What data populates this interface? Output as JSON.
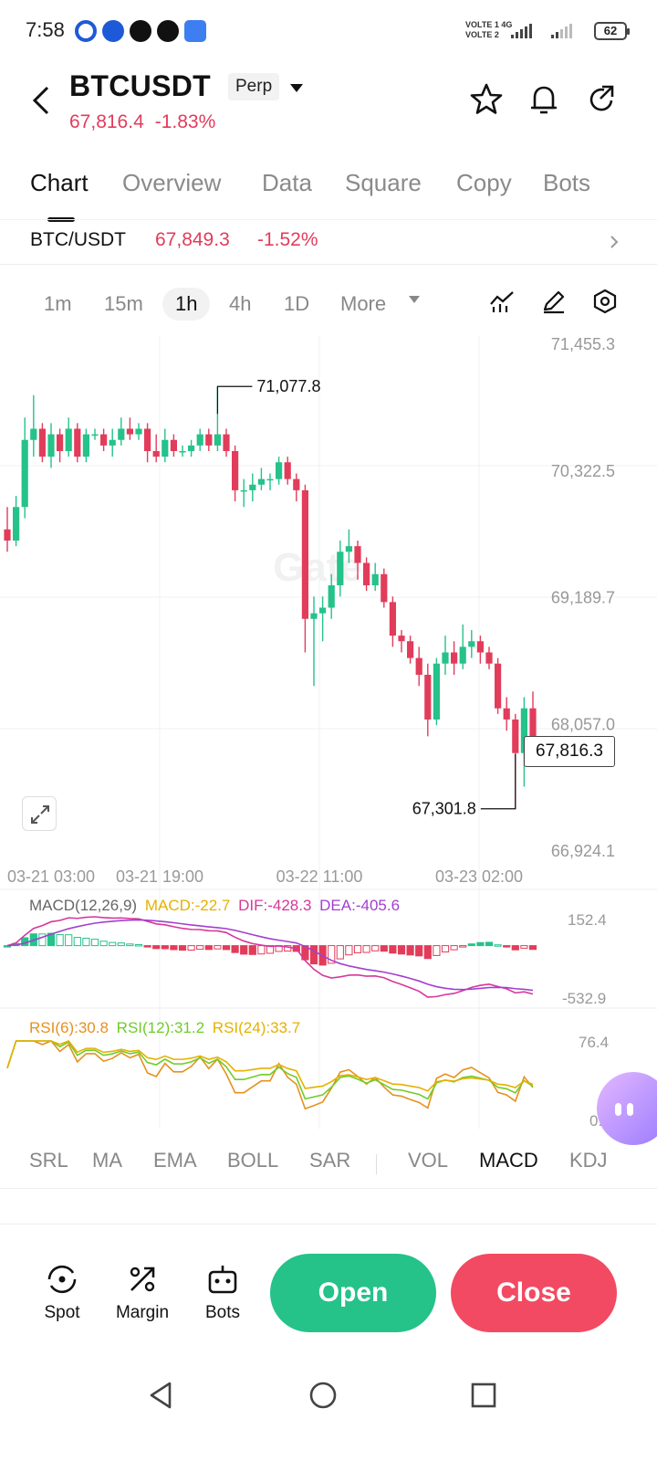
{
  "status_bar": {
    "time": "7:58",
    "net_line1": "VOLTE 1 4G",
    "net_line2": "VOLTE 2",
    "battery": "62",
    "app_icons": [
      "gate-icon",
      "x-shield-icon",
      "maya-icon",
      "x-twitter-icon",
      "cloud-icon"
    ]
  },
  "header": {
    "symbol": "BTCUSDT",
    "contract_type": "Perp",
    "price": "67,816.4",
    "change": "-1.83%",
    "accent_down": "#e23c5b",
    "accent_up": "#25c28a"
  },
  "tabs": [
    {
      "label": "Chart",
      "active": true
    },
    {
      "label": "Overview"
    },
    {
      "label": "Data"
    },
    {
      "label": "Square"
    },
    {
      "label": "Copy"
    },
    {
      "label": "Bots"
    }
  ],
  "spot": {
    "pair": "BTC/USDT",
    "price": "67,849.3",
    "change": "-1.52%"
  },
  "timeframes": [
    "1m",
    "15m",
    "1h",
    "4h",
    "1D",
    "More"
  ],
  "active_timeframe": "1h",
  "chart": {
    "watermark": "Gate",
    "high_label": "71,077.8",
    "low_label": "67,301.8",
    "last_price_label": "67,816.3",
    "y_ticks": [
      "71,455.3",
      "70,322.5",
      "69,189.7",
      "68,057.0",
      "66,924.1"
    ],
    "x_ticks": [
      "03-21 03:00",
      "03-21 19:00",
      "03-22 11:00",
      "03-23 02:00"
    ]
  },
  "macd": {
    "label": "MACD(12,26,9)",
    "macd": "MACD:-22.7",
    "dif": "DIF:-428.3",
    "dea": "DEA:-405.6",
    "top": "152.4",
    "bottom": "-532.9"
  },
  "rsi": {
    "rsi6": "RSI(6):30.8",
    "rsi12": "RSI(12):31.2",
    "rsi24": "RSI(24):33.7",
    "top": "76.4",
    "bottom": "0.2"
  },
  "indicators": [
    "SRL",
    "MA",
    "EMA",
    "BOLL",
    "SAR",
    "VOL",
    "MACD",
    "KDJ"
  ],
  "active_indicator": "MACD",
  "bottom_bar": {
    "spot": "Spot",
    "margin": "Margin",
    "bots": "Bots",
    "open": "Open",
    "close": "Close"
  },
  "chart_data": {
    "type": "candlestick",
    "interval": "1h",
    "y_range": [
      66924.1,
      71455.3
    ],
    "high": 71077.8,
    "low": 67301.8,
    "last": 67816.3,
    "candles": [
      [
        69800,
        69700,
        69600,
        70000
      ],
      [
        69700,
        70000,
        69650,
        70100
      ],
      [
        70000,
        70600,
        69900,
        70800
      ],
      [
        70600,
        70700,
        70450,
        71000
      ],
      [
        70700,
        70450,
        70400,
        70750
      ],
      [
        70450,
        70650,
        70350,
        70750
      ],
      [
        70650,
        70500,
        70400,
        70700
      ],
      [
        70500,
        70700,
        70450,
        70800
      ],
      [
        70700,
        70450,
        70400,
        70750
      ],
      [
        70450,
        70650,
        70400,
        70700
      ],
      [
        70650,
        70650,
        70600,
        70700
      ],
      [
        70650,
        70550,
        70500,
        70700
      ],
      [
        70550,
        70600,
        70450,
        70700
      ],
      [
        70600,
        70700,
        70550,
        70800
      ],
      [
        70700,
        70650,
        70600,
        70800
      ],
      [
        70650,
        70700,
        70600,
        70750
      ],
      [
        70700,
        70500,
        70400,
        70750
      ],
      [
        70500,
        70450,
        70400,
        70650
      ],
      [
        70450,
        70600,
        70400,
        70700
      ],
      [
        70600,
        70500,
        70450,
        70650
      ],
      [
        70500,
        70500,
        70450,
        70550
      ],
      [
        70500,
        70550,
        70450,
        70600
      ],
      [
        70550,
        70650,
        70500,
        70700
      ],
      [
        70650,
        70550,
        70500,
        70700
      ],
      [
        70550,
        70650,
        70500,
        71077.8
      ],
      [
        70650,
        70500,
        70450,
        70700
      ],
      [
        70500,
        70150,
        70050,
        70550
      ],
      [
        70150,
        70150,
        70000,
        70250
      ],
      [
        70150,
        70200,
        70050,
        70300
      ],
      [
        70200,
        70250,
        70150,
        70350
      ],
      [
        70250,
        70250,
        70150,
        70300
      ],
      [
        70250,
        70400,
        70200,
        70450
      ],
      [
        70400,
        70250,
        70200,
        70450
      ],
      [
        70250,
        70150,
        70050,
        70300
      ],
      [
        70150,
        69000,
        68700,
        70200
      ],
      [
        69000,
        69050,
        68400,
        69200
      ],
      [
        69050,
        69100,
        68800,
        69200
      ],
      [
        69100,
        69300,
        69000,
        69400
      ],
      [
        69300,
        69600,
        69200,
        69700
      ],
      [
        69600,
        69650,
        69500,
        69800
      ],
      [
        69650,
        69500,
        69350,
        69700
      ],
      [
        69500,
        69300,
        69250,
        69550
      ],
      [
        69300,
        69400,
        69250,
        69500
      ],
      [
        69400,
        69150,
        69100,
        69450
      ],
      [
        69150,
        68850,
        68750,
        69200
      ],
      [
        68850,
        68800,
        68700,
        68900
      ],
      [
        68800,
        68650,
        68600,
        68850
      ],
      [
        68650,
        68500,
        68400,
        68750
      ],
      [
        68500,
        68100,
        67950,
        68600
      ],
      [
        68100,
        68600,
        68050,
        68650
      ],
      [
        68600,
        68700,
        68500,
        68850
      ],
      [
        68700,
        68600,
        68500,
        68800
      ],
      [
        68600,
        68750,
        68550,
        68950
      ],
      [
        68750,
        68800,
        68650,
        68900
      ],
      [
        68800,
        68700,
        68600,
        68850
      ],
      [
        68700,
        68600,
        68550,
        68750
      ],
      [
        68600,
        68200,
        68150,
        68650
      ],
      [
        68200,
        68100,
        68000,
        68300
      ],
      [
        68100,
        67800,
        67301.8,
        68150
      ],
      [
        67800,
        68200,
        67500,
        68300
      ],
      [
        68200,
        67816.3,
        67700,
        68350
      ]
    ]
  }
}
